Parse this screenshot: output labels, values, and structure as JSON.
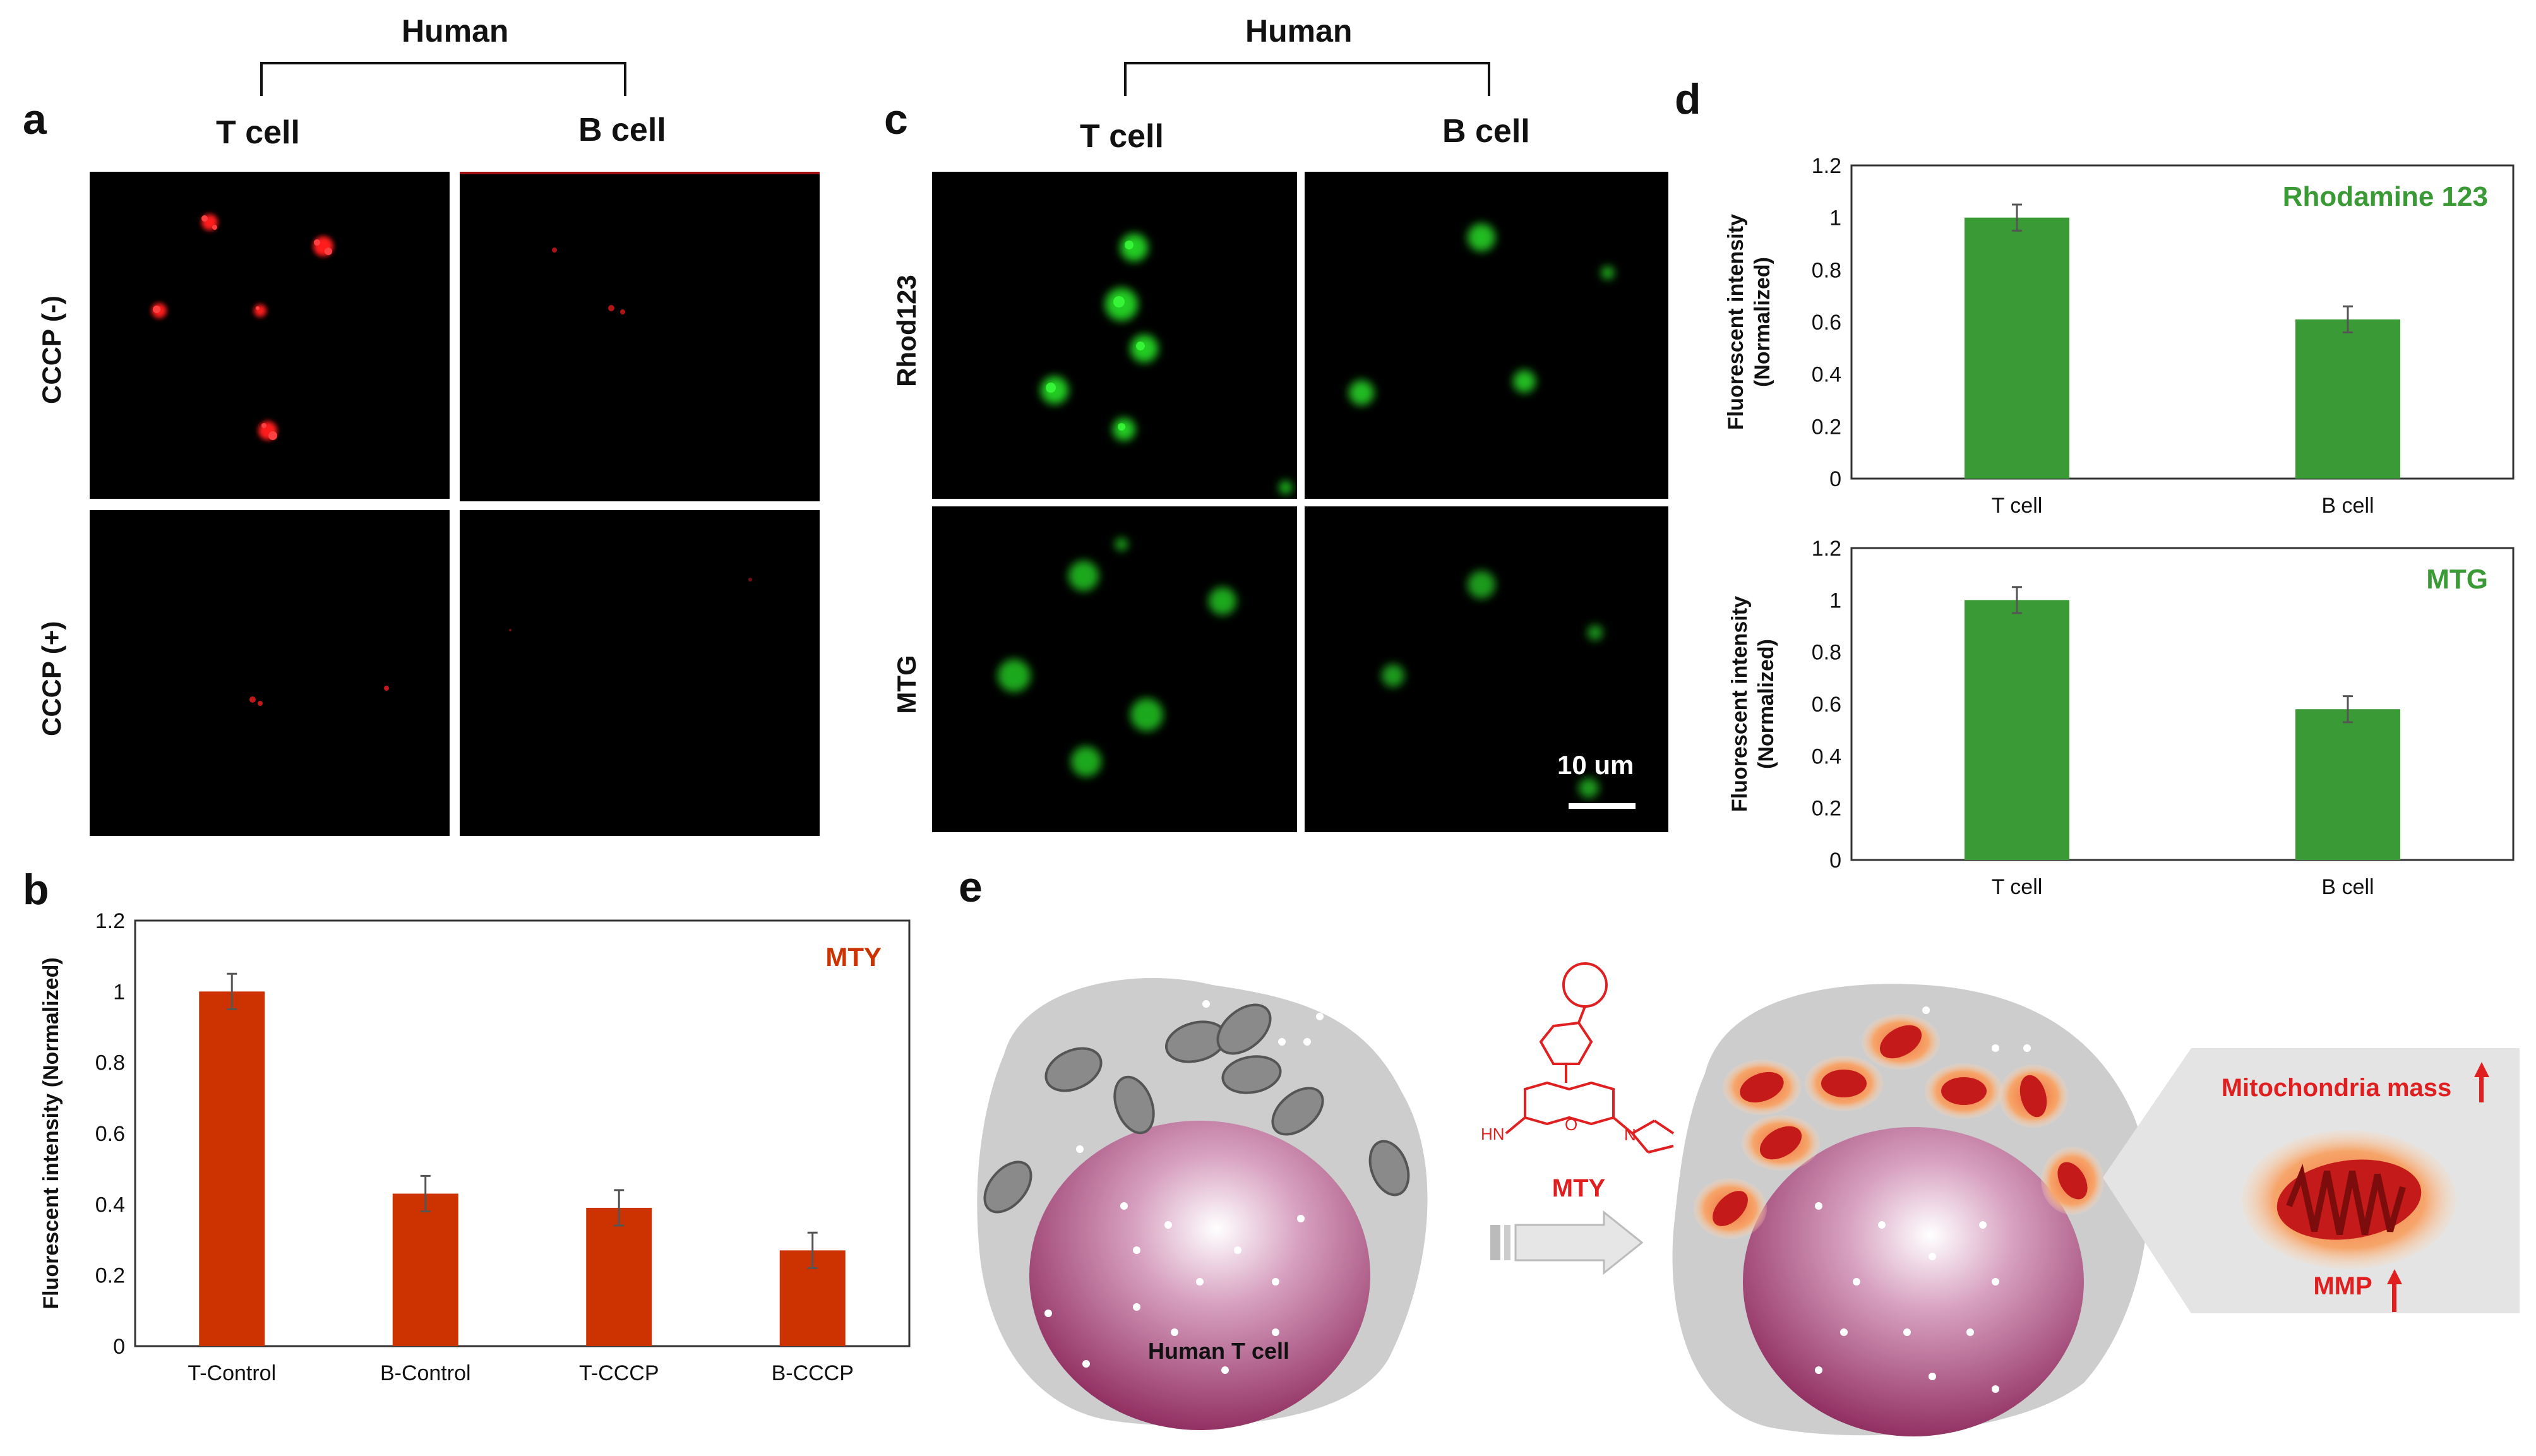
{
  "panel_a": {
    "letter": "a",
    "group": "Human",
    "columns": [
      "T  cell",
      "B  cell"
    ],
    "rows": [
      "CCCP (-)",
      "CCCP (+)"
    ]
  },
  "panel_c": {
    "letter": "c",
    "group": "Human",
    "columns": [
      "T  cell",
      "B  cell"
    ],
    "rows": [
      "Rhod123",
      "MTG"
    ],
    "scalebar": "10 um"
  },
  "panel_e": {
    "letter": "e",
    "cell_label": "Human T cell",
    "probe": "MTY",
    "hn": "HN",
    "o": "O",
    "n": "N",
    "mito_mass": "Mitochondria mass",
    "mmp": "MMP",
    "colors": {
      "red": "#d71920",
      "orange": "#f4a261",
      "cell_gray": "#cfcfcf"
    }
  },
  "chart_data": [
    {
      "id": "b",
      "letter": "b",
      "type": "bar",
      "title": "MTY",
      "ylabel": "Fluorescent intensity (Normalized)",
      "categories": [
        "T-Control",
        "B-Control",
        "T-CCCP",
        "B-CCCP"
      ],
      "values": [
        1.0,
        0.43,
        0.39,
        0.27
      ],
      "errors": [
        0.05,
        0.05,
        0.05,
        0.05
      ],
      "ylim": [
        0,
        1.2
      ],
      "yticks": [
        "0",
        "0.2",
        "0.4",
        "0.6",
        "0.8",
        "1",
        "1.2"
      ],
      "color": "#cc3300"
    },
    {
      "id": "d1",
      "letter": "d",
      "type": "bar",
      "title": "Rhodamine 123",
      "ylabel": [
        "Fluorescent intensity",
        "(Normalized)"
      ],
      "categories": [
        "T cell",
        "B cell"
      ],
      "values": [
        1.0,
        0.61
      ],
      "errors": [
        0.05,
        0.05
      ],
      "ylim": [
        0,
        1.2
      ],
      "yticks": [
        "0",
        "0.2",
        "0.4",
        "0.6",
        "0.8",
        "1",
        "1.2"
      ],
      "color": "#3a9a35"
    },
    {
      "id": "d2",
      "type": "bar",
      "title": "MTG",
      "ylabel": [
        "Fluorescent intensity",
        "(Normalized)"
      ],
      "categories": [
        "T cell",
        "B cell"
      ],
      "values": [
        1.0,
        0.58
      ],
      "errors": [
        0.05,
        0.05
      ],
      "ylim": [
        0,
        1.2
      ],
      "yticks": [
        "0",
        "0.2",
        "0.4",
        "0.6",
        "0.8",
        "1",
        "1.2"
      ],
      "color": "#3a9a35"
    }
  ]
}
